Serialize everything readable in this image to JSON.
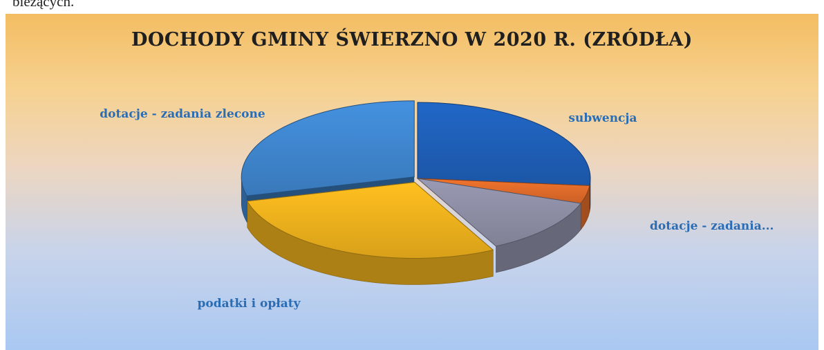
{
  "page_fragment": "bieżących.",
  "chart_data": {
    "type": "pie",
    "style": "3d",
    "title": "DOCHODY GMINY ŚWIERZNO W 2020 R. (ZRÓDŁA)",
    "slices": [
      {
        "label": "subwencja",
        "value": 26.5,
        "color": "#1f5fb8"
      },
      {
        "label": "",
        "value": 3.8,
        "color": "#e06b2a"
      },
      {
        "label": "dotacje - zadania...",
        "value": 12.2,
        "color": "#8e8fa6"
      },
      {
        "label": "podatki i opłaty",
        "value": 28.5,
        "color": "#f0b21d"
      },
      {
        "label": "dotacje - zadania zlecone",
        "value": 29.0,
        "color": "#3f86cf"
      }
    ],
    "legend": "none"
  }
}
